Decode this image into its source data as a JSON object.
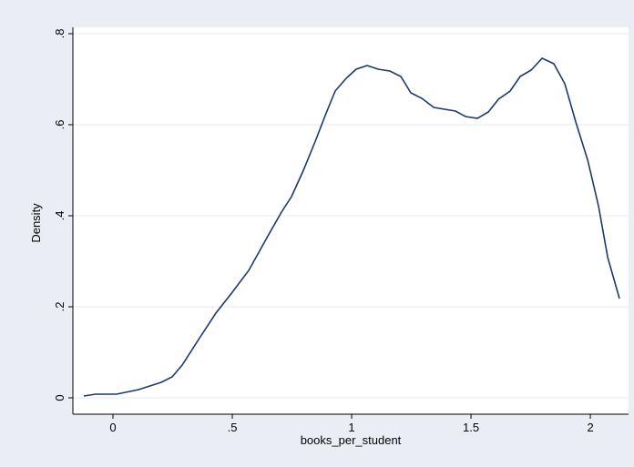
{
  "chart_data": {
    "type": "line",
    "xlabel": "books_per_student",
    "ylabel": "Density",
    "x": [
      -0.122,
      -0.073,
      0.015,
      0.107,
      0.202,
      0.248,
      0.29,
      0.366,
      0.431,
      0.5,
      0.569,
      0.656,
      0.706,
      0.748,
      0.798,
      0.851,
      0.889,
      0.931,
      0.977,
      1.019,
      1.065,
      1.111,
      1.16,
      1.206,
      1.248,
      1.294,
      1.344,
      1.435,
      1.477,
      1.527,
      1.573,
      1.615,
      1.664,
      1.706,
      1.752,
      1.798,
      1.847,
      1.893,
      1.939,
      1.989,
      2.034,
      2.073,
      2.122
    ],
    "series": [
      {
        "name": "density",
        "color": "#1a3a6e",
        "values": [
          0.004,
          0.008,
          0.008,
          0.018,
          0.034,
          0.046,
          0.072,
          0.134,
          0.186,
          0.232,
          0.28,
          0.362,
          0.408,
          0.442,
          0.5,
          0.568,
          0.62,
          0.674,
          0.702,
          0.722,
          0.73,
          0.722,
          0.718,
          0.706,
          0.67,
          0.658,
          0.638,
          0.63,
          0.618,
          0.614,
          0.628,
          0.656,
          0.674,
          0.706,
          0.72,
          0.746,
          0.734,
          0.69,
          0.606,
          0.522,
          0.422,
          0.308,
          0.218
        ]
      }
    ],
    "xlim": [
      -0.168,
      2.16
    ],
    "ylim": [
      -0.036,
      0.814
    ],
    "xticks": [
      0,
      {
        "value": 0.5,
        "label": ".5"
      },
      1,
      1.5,
      2
    ],
    "yticks": [
      0,
      {
        "value": 0.2,
        "label": ".2"
      },
      {
        "value": 0.4,
        "label": ".4"
      },
      {
        "value": 0.6,
        "label": ".6"
      },
      {
        "value": 0.8,
        "label": ".8"
      }
    ],
    "grid": true
  }
}
